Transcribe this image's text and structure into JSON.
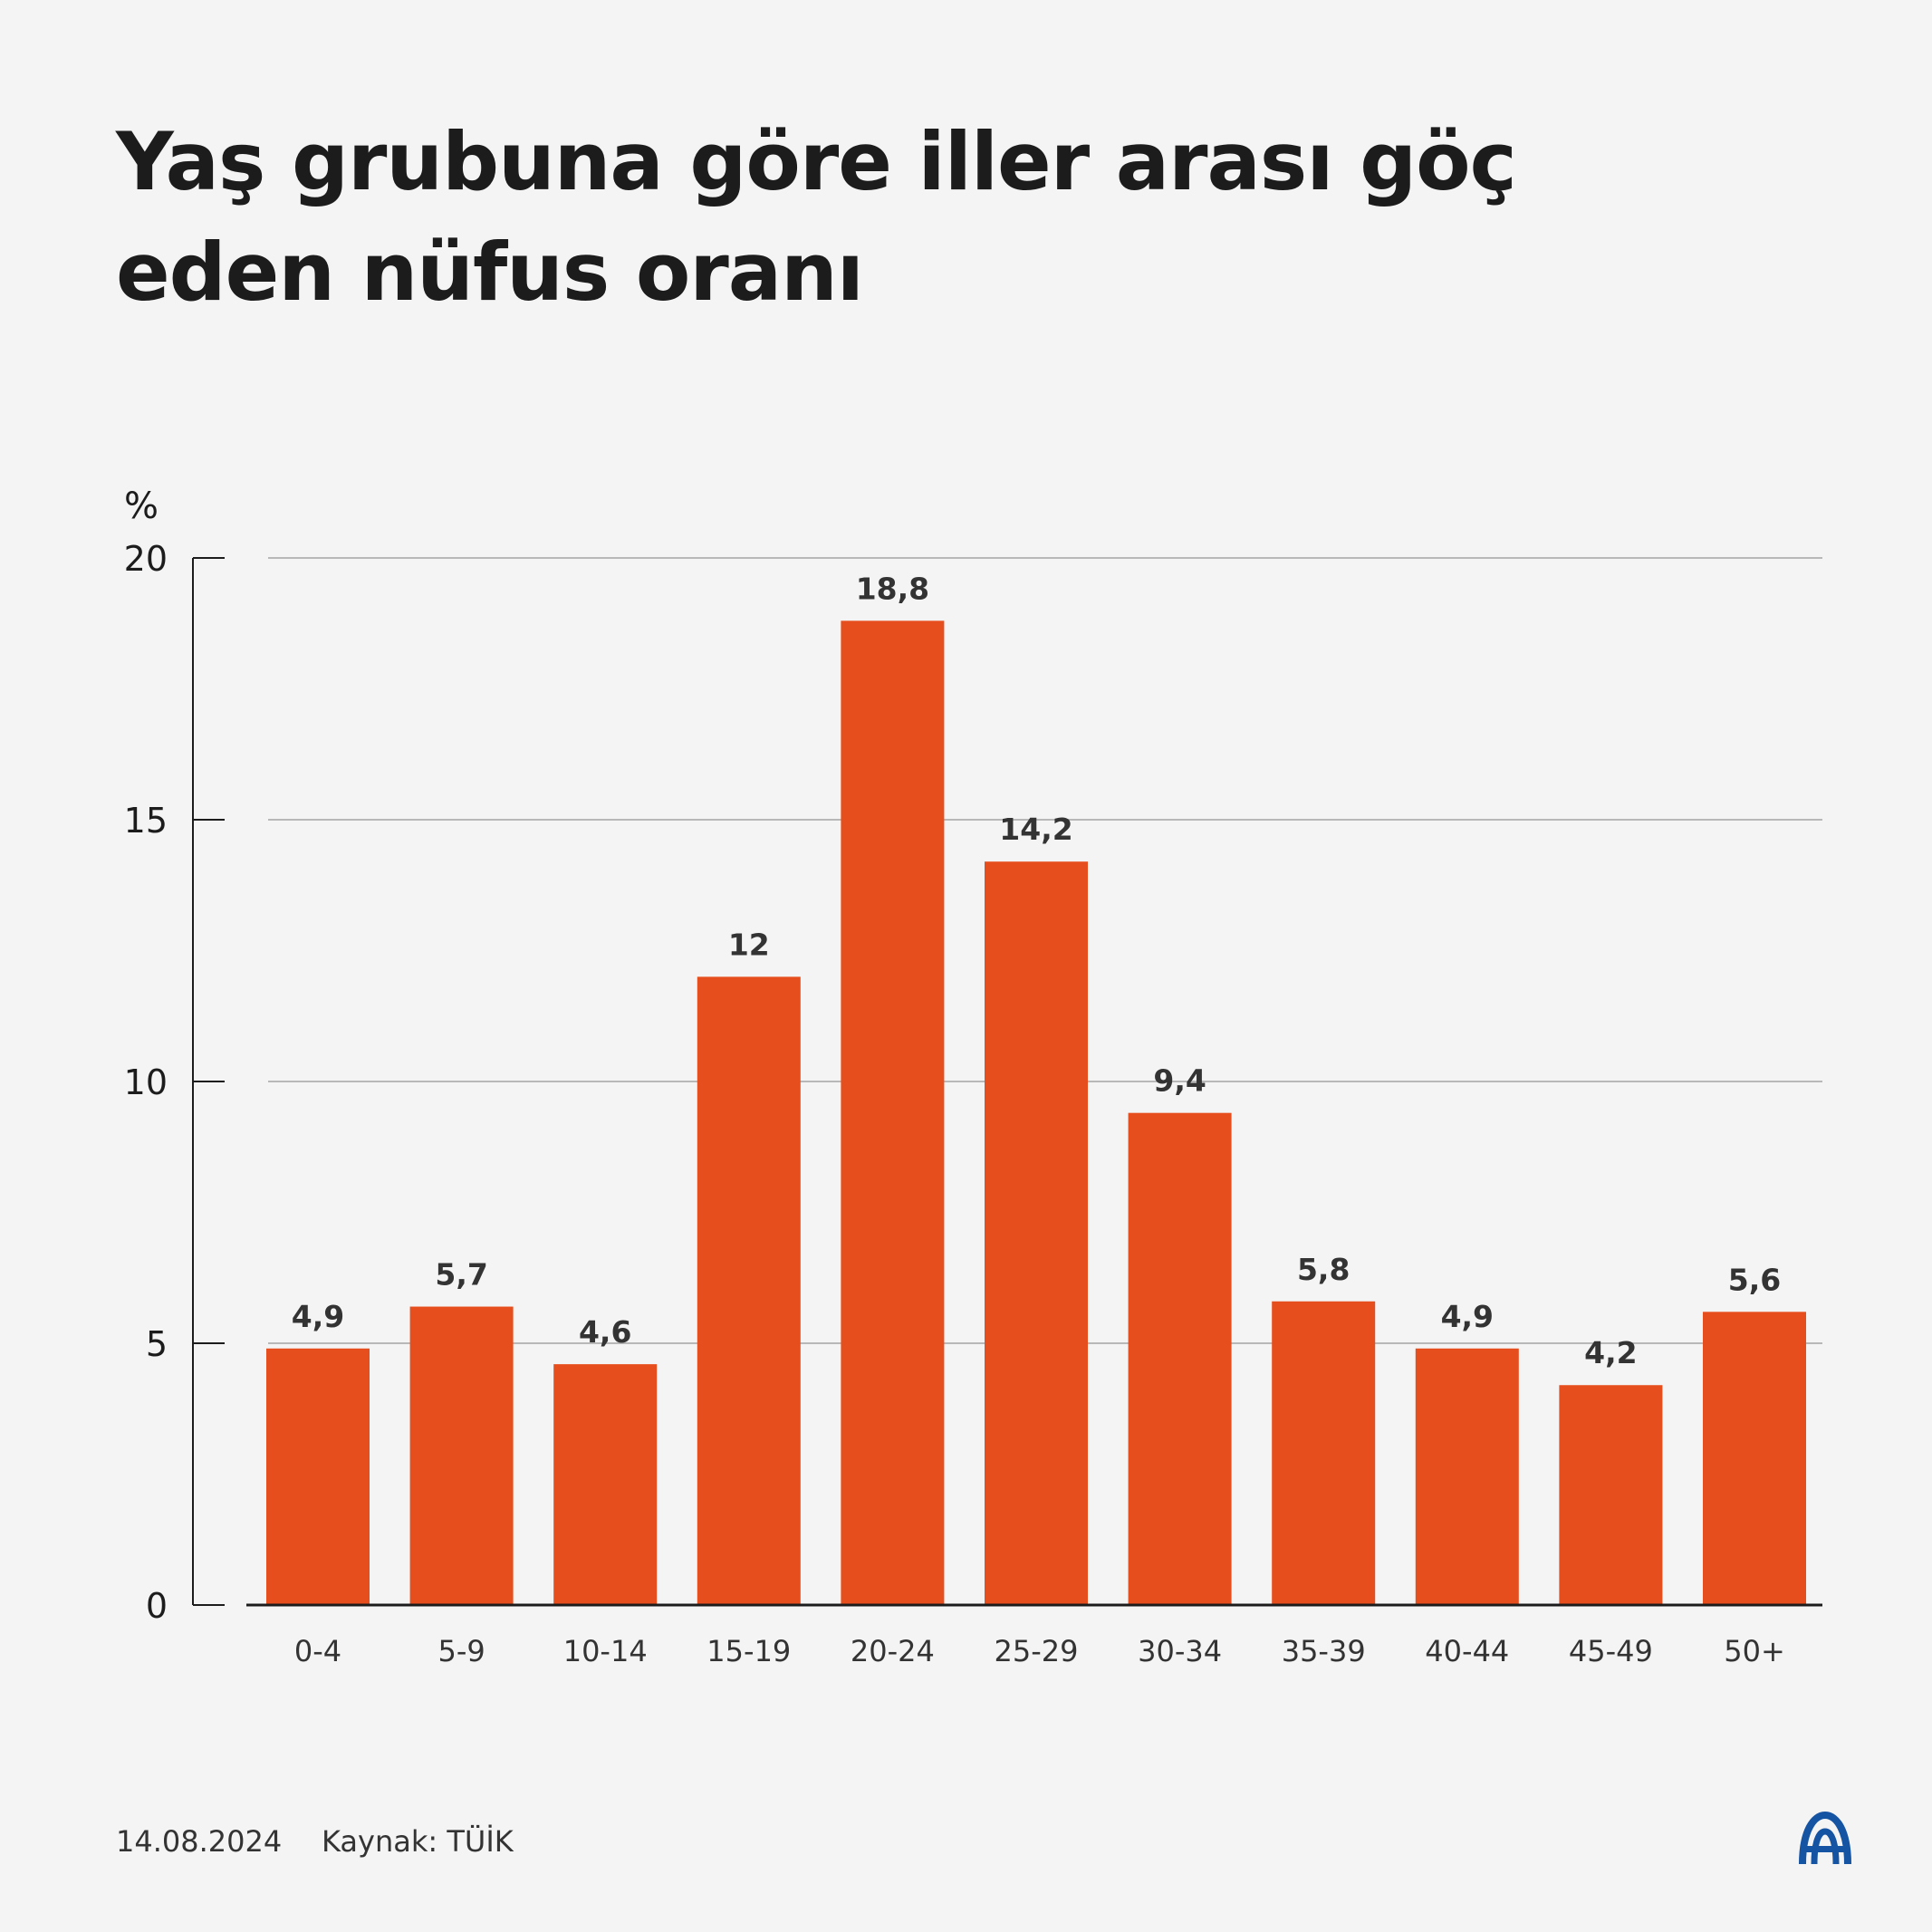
{
  "title": "Yaş grubuna göre iller arası göç eden nüfus oranı",
  "footer": {
    "date": "14.08.2024",
    "source": "Kaynak: TÜİK"
  },
  "logo": {
    "icon": "aa-logo-icon",
    "text": "AA"
  },
  "colors": {
    "bar": "#e64e1d",
    "background": "#f4f4f4",
    "grid": "#b8b8b8",
    "text": "#1c1c1c"
  },
  "chart_data": {
    "type": "bar",
    "title": "",
    "xlabel": "",
    "ylabel": "%",
    "ylim": [
      0,
      20
    ],
    "yticks": [
      0,
      5,
      10,
      15,
      20
    ],
    "grid": true,
    "categories": [
      "0-4",
      "5-9",
      "10-14",
      "15-19",
      "20-24",
      "25-29",
      "30-34",
      "35-39",
      "40-44",
      "45-49",
      "50+"
    ],
    "values": [
      4.9,
      5.7,
      4.6,
      12,
      18.8,
      14.2,
      9.4,
      5.8,
      4.9,
      4.2,
      5.6
    ],
    "value_labels": [
      "4,9",
      "5,7",
      "4,6",
      "12",
      "18,8",
      "14,2",
      "9,4",
      "5,8",
      "4,9",
      "4,2",
      "5,6"
    ]
  }
}
